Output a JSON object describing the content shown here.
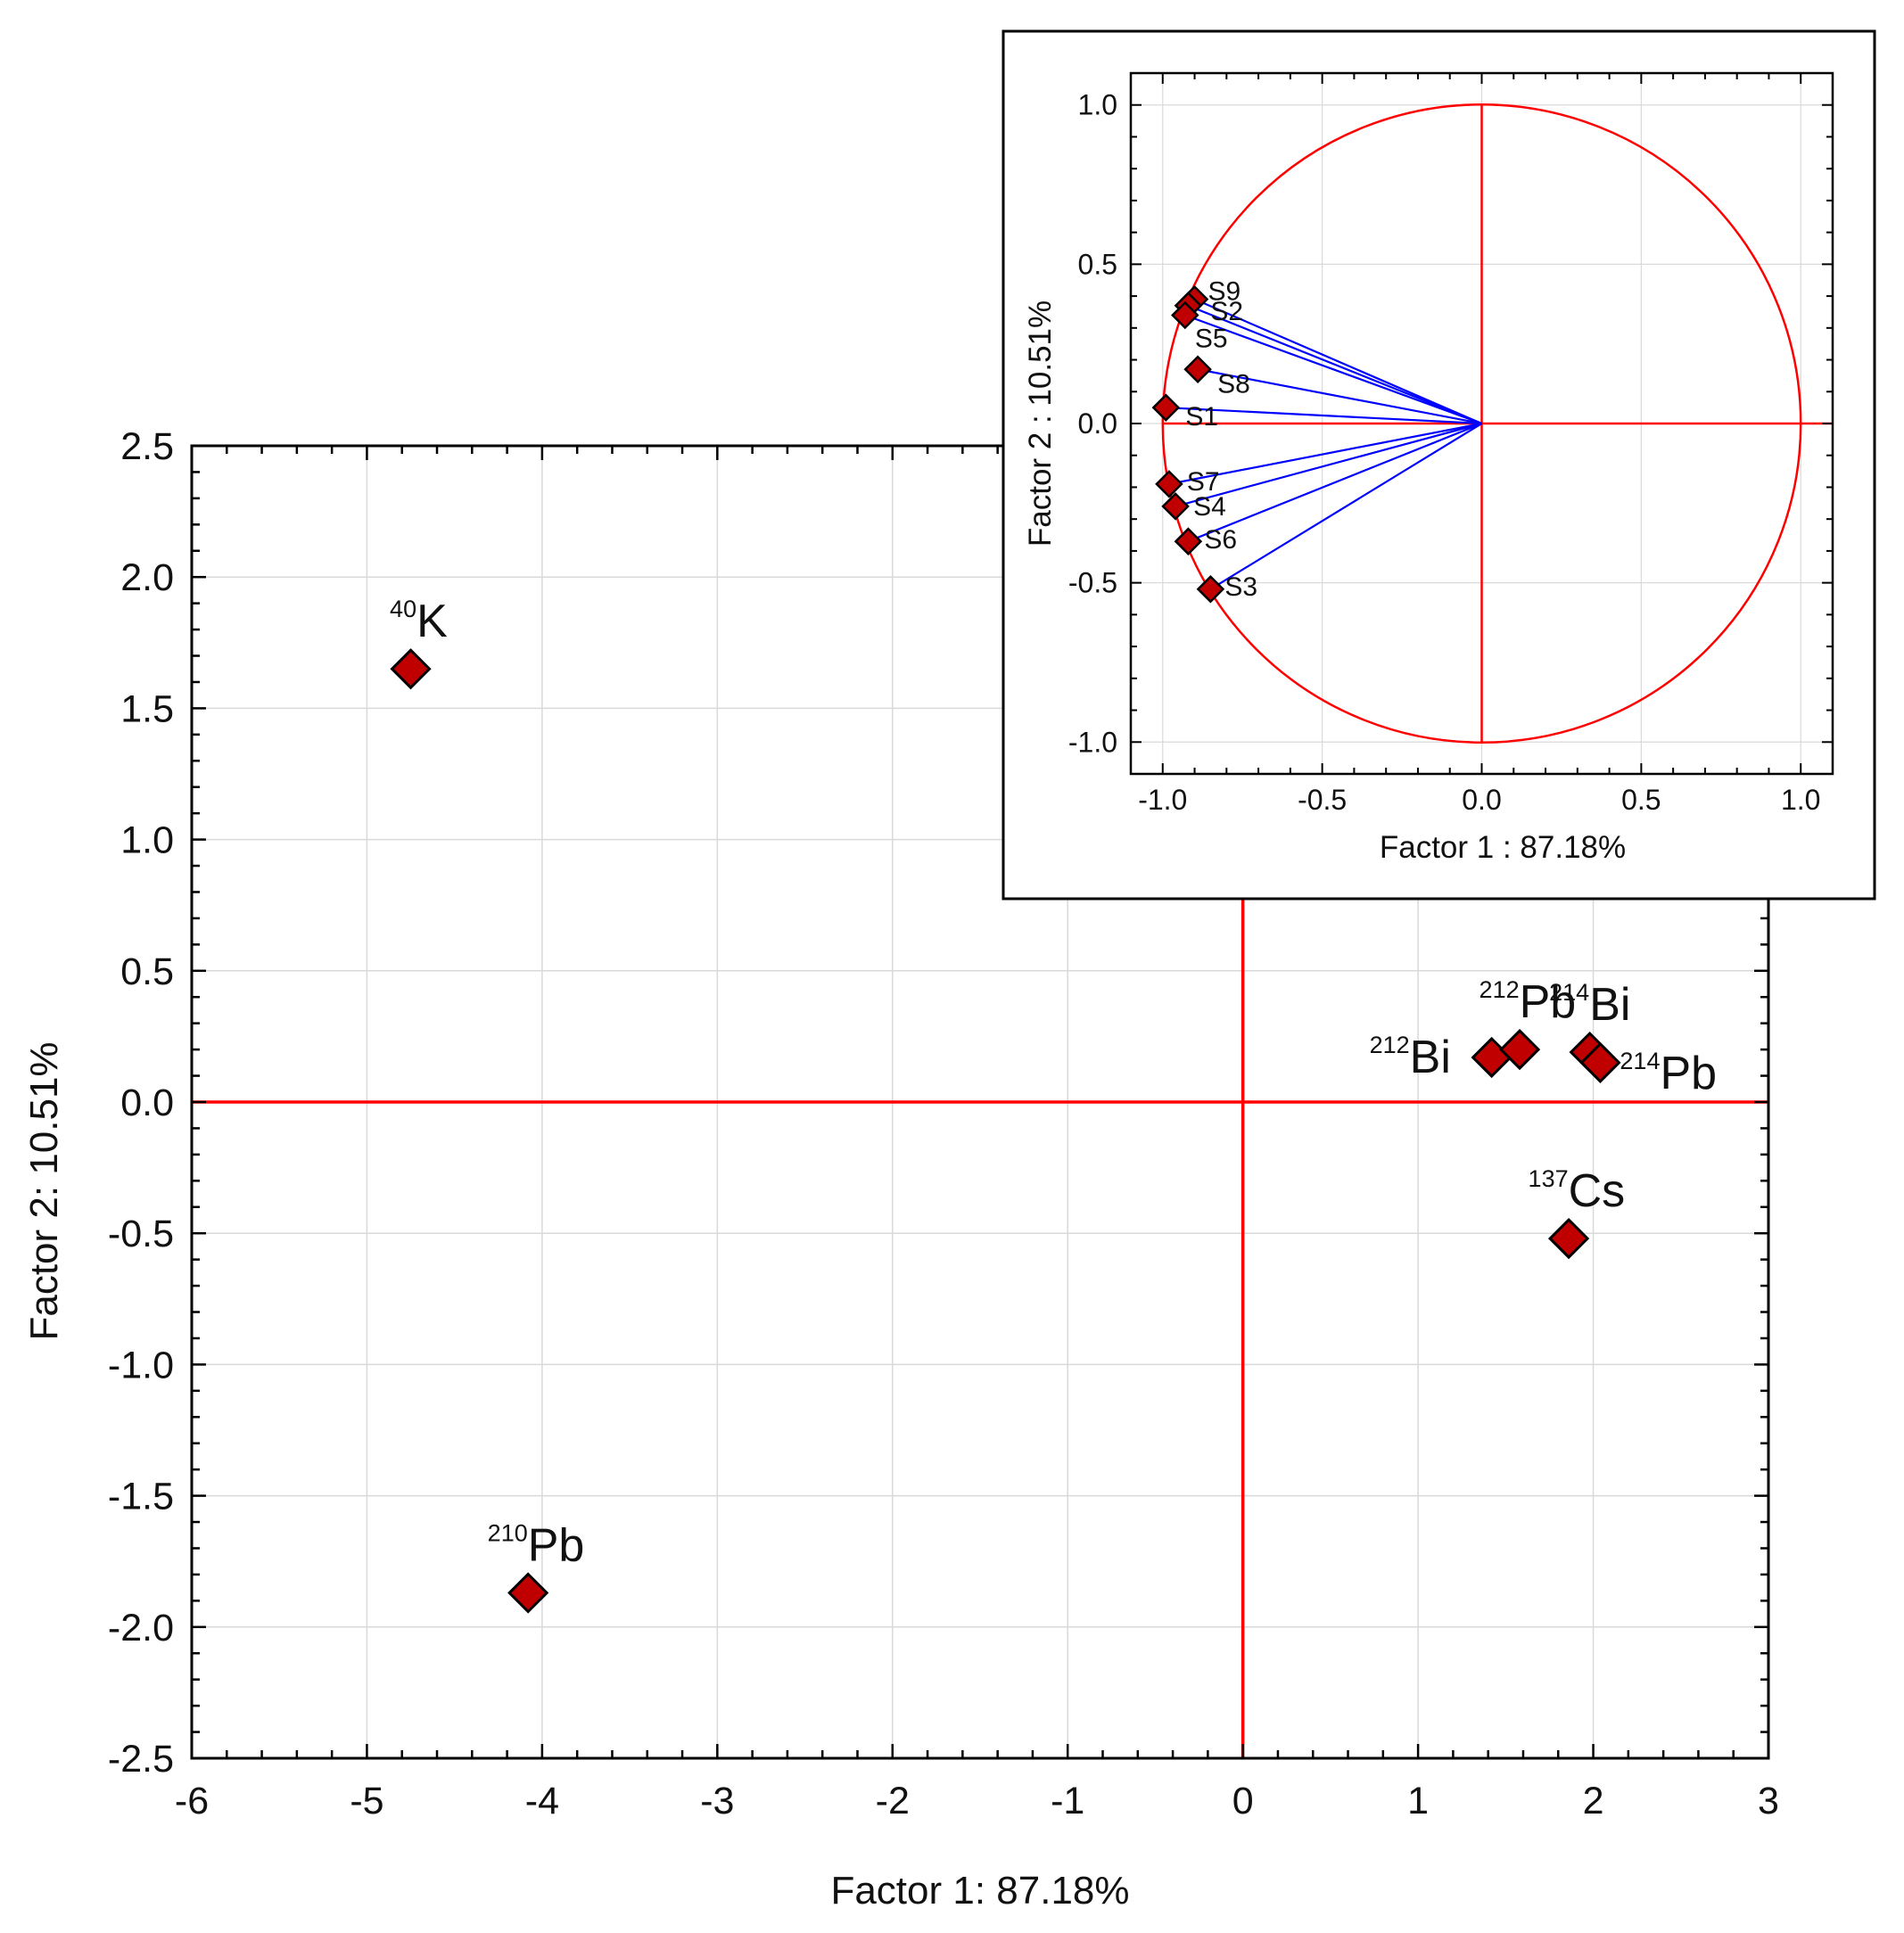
{
  "chart_data": [
    {
      "type": "scatter",
      "name": "factor-scores",
      "xlabel": "Factor 1: 87.18%",
      "ylabel": "Factor 2: 10.51%",
      "xlim": [
        -6,
        3
      ],
      "ylim": [
        -2.5,
        2.5
      ],
      "xticks": [
        -6,
        -5,
        -4,
        -3,
        -2,
        -1,
        0,
        1,
        2,
        3
      ],
      "xtick_labels": [
        "-6",
        "-5",
        "-4",
        "-3",
        "-2",
        "-1",
        "0",
        "1",
        "2",
        "3"
      ],
      "yticks": [
        2.5,
        2.0,
        1.5,
        1.0,
        0.5,
        0.0,
        -0.5,
        -1.0,
        -1.5,
        -2.0,
        -2.5
      ],
      "ytick_labels": [
        "2.5",
        "2.0",
        "1.5",
        "1.0",
        "0.5",
        "0.0",
        "-0.5",
        "-1.0",
        "-1.5",
        "-2.0",
        "-2.5"
      ],
      "grid": true,
      "colors": {
        "marker": "#c00000",
        "reference": "#ff0000",
        "grid": "#d9d9d9"
      },
      "points": [
        {
          "mass": "40",
          "element": "K",
          "x": -4.75,
          "y": 1.65,
          "label_pos": "above"
        },
        {
          "mass": "210",
          "element": "Pb",
          "x": -4.08,
          "y": -1.87,
          "label_pos": "above"
        },
        {
          "mass": "212",
          "element": "Bi",
          "x": 1.42,
          "y": 0.17,
          "label_pos": "left"
        },
        {
          "mass": "212",
          "element": "Pb",
          "x": 1.58,
          "y": 0.2,
          "label_pos": "above"
        },
        {
          "mass": "214",
          "element": "Bi",
          "x": 1.98,
          "y": 0.19,
          "label_pos": "above"
        },
        {
          "mass": "214",
          "element": "Pb",
          "x": 2.04,
          "y": 0.15,
          "label_pos": "right"
        },
        {
          "mass": "137",
          "element": "Cs",
          "x": 1.86,
          "y": -0.52,
          "label_pos": "above"
        }
      ]
    },
    {
      "type": "scatter",
      "name": "factor-loadings",
      "xlabel": "Factor 1 : 87.18%",
      "ylabel": "Factor 2 : 10.51%",
      "xlim": [
        -1.1,
        1.1
      ],
      "ylim": [
        -1.1,
        1.1
      ],
      "xticks": [
        -1.0,
        -0.5,
        0.0,
        0.5,
        1.0
      ],
      "xtick_labels": [
        "-1.0",
        "-0.5",
        "0.0",
        "0.5",
        "1.0"
      ],
      "yticks": [
        1.0,
        0.5,
        0.0,
        -0.5,
        -1.0
      ],
      "ytick_labels": [
        "1.0",
        "0.5",
        "0.0",
        "-0.5",
        "-1.0"
      ],
      "grid": true,
      "unit_circle": true,
      "colors": {
        "marker": "#c00000",
        "vector": "#0000ff",
        "reference": "#ff0000",
        "grid": "#d9d9d9"
      },
      "points": [
        {
          "label": "S9",
          "x": -0.9,
          "y": 0.39
        },
        {
          "label": "S2",
          "x": -0.92,
          "y": 0.37
        },
        {
          "label": "S5",
          "x": -0.93,
          "y": 0.34
        },
        {
          "label": "S8",
          "x": -0.89,
          "y": 0.17
        },
        {
          "label": "S1",
          "x": -0.99,
          "y": 0.05
        },
        {
          "label": "S7",
          "x": -0.98,
          "y": -0.19
        },
        {
          "label": "S4",
          "x": -0.96,
          "y": -0.26
        },
        {
          "label": "S6",
          "x": -0.92,
          "y": -0.37
        },
        {
          "label": "S3",
          "x": -0.85,
          "y": -0.52
        }
      ]
    }
  ]
}
